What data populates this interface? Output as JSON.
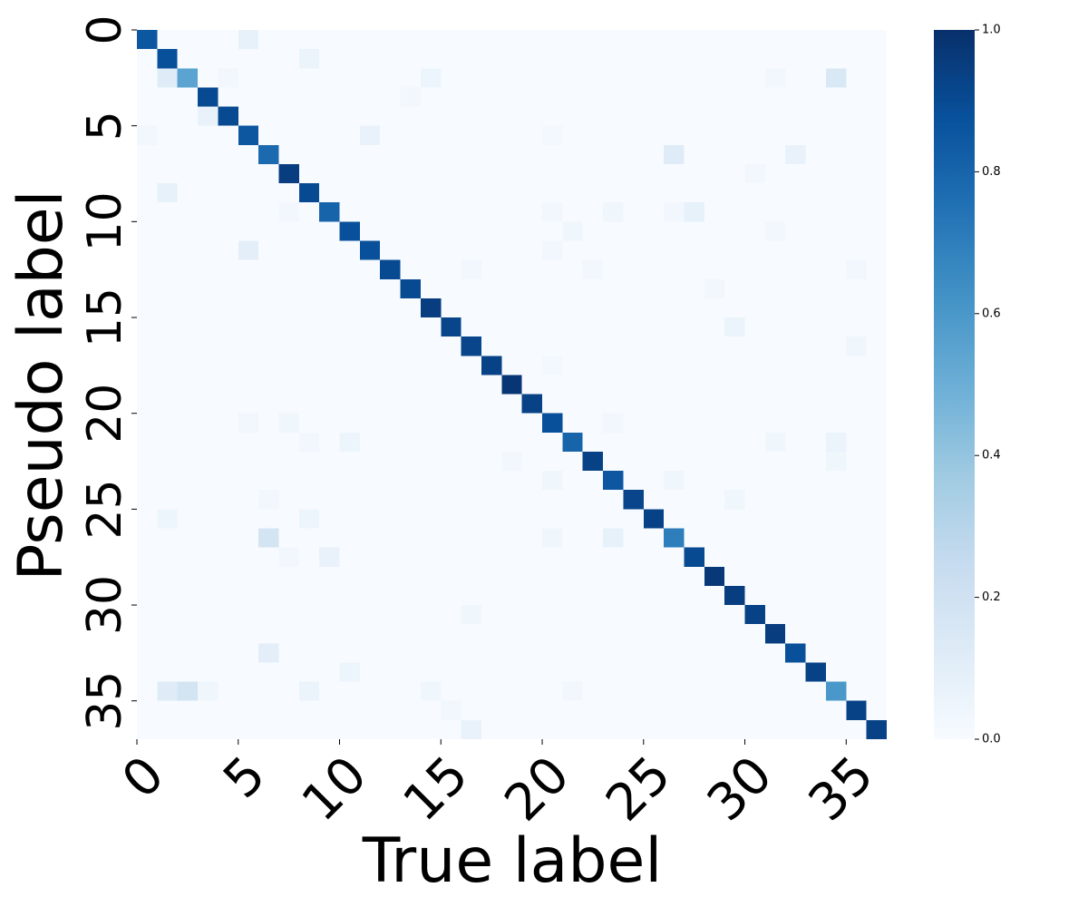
{
  "chart_data": {
    "type": "heatmap",
    "x_label": "True label",
    "y_label": "Pseudo label",
    "xlim": [
      0,
      37
    ],
    "ylim": [
      0,
      37
    ],
    "xticks": [
      0,
      5,
      10,
      15,
      20,
      25,
      30,
      35
    ],
    "yticks": [
      0,
      5,
      10,
      15,
      20,
      25,
      30,
      35
    ],
    "colorscale": [
      "#f7fbff",
      "#deebf7",
      "#c6dbef",
      "#9ecae1",
      "#6baed6",
      "#4292c6",
      "#2171b5",
      "#08519c",
      "#08306b"
    ],
    "colorbar": {
      "lim": [
        0,
        1
      ],
      "ticks": [
        {
          "value": 0,
          "label": "0.0"
        },
        {
          "value": 0.2,
          "label": "0.2"
        },
        {
          "value": 0.4,
          "label": "0.4"
        },
        {
          "value": 0.6,
          "label": "0.6"
        },
        {
          "value": 0.8,
          "label": "0.8"
        },
        {
          "value": 1,
          "label": "1.0"
        }
      ]
    },
    "values": [
      [
        0.85,
        0,
        0,
        0,
        0,
        0.08,
        0,
        0,
        0,
        0,
        0,
        0,
        0,
        0,
        0,
        0,
        0,
        0,
        0,
        0,
        0,
        0,
        0,
        0,
        0,
        0,
        0,
        0,
        0,
        0,
        0,
        0,
        0,
        0,
        0,
        0,
        0
      ],
      [
        0,
        0.88,
        0,
        0,
        0,
        0,
        0,
        0,
        0.06,
        0,
        0,
        0,
        0,
        0,
        0,
        0,
        0,
        0,
        0,
        0,
        0,
        0,
        0,
        0,
        0,
        0,
        0,
        0,
        0,
        0,
        0,
        0,
        0,
        0,
        0,
        0,
        0
      ],
      [
        0,
        0.12,
        0.55,
        0,
        0.03,
        0,
        0,
        0,
        0,
        0,
        0,
        0,
        0,
        0,
        0.05,
        0,
        0,
        0,
        0,
        0,
        0,
        0,
        0,
        0,
        0,
        0,
        0,
        0,
        0,
        0,
        0,
        0.03,
        0,
        0,
        0.15,
        0,
        0
      ],
      [
        0,
        0,
        0,
        0.9,
        0,
        0,
        0,
        0,
        0,
        0,
        0,
        0,
        0,
        0.03,
        0,
        0,
        0,
        0,
        0,
        0,
        0,
        0,
        0,
        0,
        0,
        0,
        0,
        0,
        0,
        0,
        0,
        0,
        0,
        0,
        0,
        0,
        0
      ],
      [
        0,
        0,
        0,
        0.07,
        0.9,
        0,
        0,
        0,
        0,
        0,
        0,
        0,
        0,
        0,
        0,
        0,
        0,
        0,
        0,
        0,
        0,
        0,
        0,
        0,
        0,
        0,
        0,
        0,
        0,
        0,
        0,
        0,
        0,
        0,
        0,
        0,
        0
      ],
      [
        0.03,
        0,
        0,
        0,
        0,
        0.85,
        0,
        0,
        0,
        0,
        0,
        0.07,
        0,
        0,
        0,
        0,
        0,
        0,
        0,
        0,
        0.02,
        0,
        0,
        0,
        0,
        0,
        0,
        0,
        0,
        0,
        0,
        0,
        0,
        0,
        0,
        0,
        0
      ],
      [
        0,
        0,
        0,
        0,
        0,
        0,
        0.78,
        0,
        0,
        0,
        0,
        0,
        0,
        0,
        0,
        0,
        0,
        0,
        0,
        0,
        0,
        0,
        0,
        0,
        0,
        0,
        0.12,
        0,
        0,
        0,
        0,
        0,
        0.07,
        0,
        0,
        0,
        0
      ],
      [
        0,
        0,
        0,
        0,
        0,
        0,
        0,
        0.95,
        0,
        0,
        0,
        0,
        0,
        0,
        0,
        0,
        0,
        0,
        0,
        0,
        0,
        0,
        0,
        0,
        0,
        0,
        0,
        0,
        0,
        0,
        0.03,
        0,
        0,
        0,
        0,
        0,
        0
      ],
      [
        0,
        0.08,
        0,
        0,
        0,
        0,
        0,
        0,
        0.9,
        0,
        0,
        0,
        0,
        0,
        0,
        0,
        0,
        0,
        0,
        0,
        0,
        0,
        0,
        0,
        0,
        0,
        0,
        0,
        0,
        0,
        0,
        0,
        0,
        0,
        0,
        0,
        0
      ],
      [
        0,
        0,
        0,
        0,
        0,
        0,
        0,
        0.03,
        0,
        0.8,
        0,
        0,
        0,
        0,
        0,
        0,
        0,
        0,
        0,
        0,
        0.03,
        0,
        0,
        0.04,
        0,
        0,
        0.03,
        0.08,
        0,
        0,
        0,
        0,
        0,
        0,
        0,
        0,
        0
      ],
      [
        0,
        0,
        0,
        0,
        0,
        0,
        0,
        0,
        0,
        0,
        0.88,
        0,
        0,
        0,
        0,
        0,
        0,
        0,
        0,
        0,
        0,
        0.04,
        0,
        0,
        0,
        0,
        0,
        0,
        0,
        0,
        0,
        0.03,
        0,
        0,
        0,
        0,
        0
      ],
      [
        0,
        0,
        0,
        0,
        0,
        0.1,
        0,
        0,
        0,
        0,
        0,
        0.88,
        0,
        0,
        0,
        0,
        0,
        0,
        0,
        0,
        0.03,
        0,
        0,
        0,
        0,
        0,
        0,
        0,
        0,
        0,
        0,
        0,
        0,
        0,
        0,
        0,
        0
      ],
      [
        0,
        0,
        0,
        0,
        0,
        0,
        0,
        0,
        0,
        0,
        0,
        0,
        0.9,
        0,
        0,
        0,
        0.03,
        0,
        0,
        0,
        0,
        0,
        0.03,
        0,
        0,
        0,
        0,
        0,
        0,
        0,
        0,
        0,
        0,
        0,
        0,
        0.03,
        0
      ],
      [
        0,
        0,
        0,
        0,
        0,
        0,
        0,
        0,
        0,
        0,
        0,
        0,
        0,
        0.9,
        0,
        0,
        0,
        0,
        0,
        0,
        0,
        0,
        0,
        0,
        0,
        0,
        0,
        0,
        0.03,
        0,
        0,
        0,
        0,
        0,
        0,
        0,
        0
      ],
      [
        0,
        0,
        0,
        0,
        0,
        0,
        0,
        0,
        0,
        0,
        0,
        0,
        0,
        0,
        0.95,
        0,
        0,
        0,
        0,
        0,
        0,
        0,
        0,
        0,
        0,
        0,
        0,
        0,
        0,
        0,
        0,
        0,
        0,
        0,
        0,
        0,
        0
      ],
      [
        0,
        0,
        0,
        0,
        0,
        0,
        0,
        0,
        0,
        0,
        0,
        0,
        0,
        0,
        0,
        0.92,
        0,
        0,
        0,
        0,
        0,
        0,
        0,
        0,
        0,
        0,
        0,
        0,
        0,
        0.06,
        0,
        0,
        0,
        0,
        0,
        0,
        0
      ],
      [
        0,
        0,
        0,
        0,
        0,
        0,
        0,
        0,
        0,
        0,
        0,
        0,
        0,
        0,
        0,
        0,
        0.92,
        0,
        0,
        0,
        0,
        0,
        0,
        0,
        0,
        0,
        0,
        0,
        0,
        0,
        0,
        0,
        0,
        0,
        0,
        0.04,
        0
      ],
      [
        0,
        0,
        0,
        0,
        0,
        0,
        0,
        0,
        0,
        0,
        0,
        0,
        0,
        0,
        0,
        0,
        0,
        0.93,
        0,
        0,
        0.02,
        0,
        0,
        0,
        0,
        0,
        0,
        0,
        0,
        0,
        0,
        0,
        0,
        0,
        0,
        0,
        0
      ],
      [
        0,
        0,
        0,
        0,
        0,
        0,
        0,
        0,
        0,
        0,
        0,
        0,
        0,
        0,
        0,
        0,
        0,
        0,
        0.98,
        0,
        0,
        0,
        0,
        0,
        0,
        0,
        0,
        0,
        0,
        0,
        0,
        0,
        0,
        0,
        0,
        0,
        0
      ],
      [
        0,
        0,
        0,
        0,
        0,
        0,
        0,
        0,
        0,
        0,
        0,
        0,
        0,
        0,
        0,
        0,
        0,
        0,
        0,
        0.93,
        0,
        0,
        0,
        0,
        0,
        0,
        0,
        0,
        0,
        0,
        0,
        0,
        0,
        0,
        0,
        0,
        0
      ],
      [
        0,
        0,
        0,
        0,
        0,
        0.03,
        0,
        0.04,
        0,
        0,
        0,
        0,
        0,
        0,
        0,
        0,
        0,
        0,
        0,
        0,
        0.88,
        0,
        0,
        0.03,
        0,
        0,
        0,
        0,
        0,
        0,
        0,
        0,
        0,
        0,
        0,
        0,
        0
      ],
      [
        0,
        0,
        0,
        0,
        0,
        0,
        0,
        0,
        0.03,
        0,
        0.05,
        0,
        0,
        0,
        0,
        0,
        0,
        0,
        0,
        0,
        0,
        0.8,
        0,
        0,
        0,
        0,
        0,
        0,
        0,
        0,
        0,
        0.04,
        0,
        0,
        0.06,
        0,
        0
      ],
      [
        0,
        0,
        0,
        0,
        0,
        0,
        0,
        0,
        0,
        0,
        0,
        0,
        0,
        0,
        0,
        0,
        0,
        0,
        0.03,
        0,
        0,
        0,
        0.93,
        0,
        0,
        0,
        0,
        0,
        0,
        0,
        0,
        0,
        0,
        0,
        0.04,
        0,
        0
      ],
      [
        0,
        0,
        0,
        0,
        0,
        0,
        0,
        0,
        0,
        0,
        0,
        0,
        0,
        0,
        0,
        0,
        0,
        0,
        0,
        0,
        0.04,
        0,
        0,
        0.85,
        0,
        0,
        0.04,
        0,
        0,
        0,
        0,
        0,
        0,
        0,
        0,
        0,
        0
      ],
      [
        0,
        0,
        0,
        0,
        0,
        0,
        0.03,
        0,
        0,
        0,
        0,
        0,
        0,
        0,
        0,
        0,
        0,
        0,
        0,
        0,
        0,
        0,
        0,
        0,
        0.92,
        0,
        0,
        0,
        0,
        0.04,
        0,
        0,
        0,
        0,
        0,
        0,
        0
      ],
      [
        0,
        0.05,
        0,
        0,
        0,
        0,
        0,
        0,
        0.05,
        0,
        0,
        0,
        0,
        0,
        0,
        0,
        0,
        0,
        0,
        0,
        0,
        0,
        0,
        0,
        0,
        0.93,
        0,
        0,
        0,
        0,
        0,
        0,
        0,
        0,
        0,
        0,
        0
      ],
      [
        0,
        0,
        0,
        0,
        0,
        0,
        0.18,
        0,
        0,
        0,
        0,
        0,
        0,
        0,
        0,
        0,
        0,
        0,
        0,
        0,
        0.04,
        0,
        0,
        0.08,
        0,
        0,
        0.7,
        0,
        0,
        0,
        0,
        0,
        0,
        0,
        0,
        0,
        0
      ],
      [
        0,
        0,
        0,
        0,
        0,
        0,
        0,
        0.03,
        0,
        0.07,
        0,
        0,
        0,
        0,
        0,
        0,
        0,
        0,
        0,
        0,
        0,
        0,
        0,
        0,
        0,
        0,
        0,
        0.9,
        0,
        0,
        0,
        0,
        0,
        0,
        0,
        0,
        0
      ],
      [
        0,
        0,
        0,
        0,
        0,
        0,
        0,
        0,
        0,
        0,
        0,
        0,
        0,
        0,
        0,
        0,
        0,
        0,
        0,
        0,
        0,
        0,
        0,
        0,
        0,
        0,
        0,
        0,
        0.97,
        0,
        0,
        0,
        0,
        0,
        0,
        0,
        0
      ],
      [
        0,
        0,
        0,
        0,
        0,
        0,
        0,
        0,
        0,
        0,
        0,
        0,
        0,
        0,
        0,
        0,
        0,
        0,
        0,
        0,
        0,
        0,
        0,
        0,
        0,
        0,
        0,
        0,
        0,
        0.95,
        0,
        0,
        0,
        0,
        0,
        0,
        0
      ],
      [
        0,
        0,
        0,
        0,
        0,
        0,
        0,
        0,
        0,
        0,
        0,
        0,
        0,
        0,
        0,
        0,
        0.04,
        0,
        0,
        0,
        0,
        0,
        0,
        0,
        0,
        0,
        0,
        0,
        0,
        0,
        0.93,
        0,
        0,
        0,
        0,
        0,
        0
      ],
      [
        0,
        0,
        0,
        0,
        0,
        0,
        0,
        0,
        0,
        0,
        0,
        0,
        0,
        0,
        0,
        0,
        0,
        0,
        0,
        0,
        0,
        0,
        0,
        0,
        0,
        0,
        0,
        0,
        0,
        0,
        0,
        0.95,
        0,
        0,
        0,
        0,
        0
      ],
      [
        0,
        0,
        0,
        0,
        0,
        0,
        0.1,
        0,
        0,
        0,
        0,
        0,
        0,
        0,
        0,
        0,
        0,
        0,
        0,
        0,
        0,
        0,
        0,
        0,
        0,
        0,
        0,
        0,
        0,
        0,
        0,
        0,
        0.88,
        0,
        0,
        0,
        0
      ],
      [
        0,
        0,
        0,
        0,
        0,
        0,
        0,
        0,
        0,
        0,
        0.05,
        0,
        0,
        0,
        0,
        0,
        0,
        0,
        0,
        0,
        0,
        0,
        0,
        0,
        0,
        0,
        0,
        0,
        0,
        0,
        0,
        0,
        0,
        0.93,
        0,
        0,
        0
      ],
      [
        0,
        0.12,
        0.18,
        0.04,
        0,
        0,
        0,
        0,
        0.06,
        0,
        0,
        0,
        0,
        0,
        0.04,
        0,
        0,
        0,
        0,
        0,
        0,
        0.03,
        0,
        0,
        0,
        0,
        0,
        0,
        0,
        0,
        0,
        0,
        0,
        0,
        0.6,
        0,
        0
      ],
      [
        0,
        0,
        0,
        0,
        0,
        0,
        0,
        0,
        0,
        0,
        0,
        0,
        0,
        0,
        0,
        0.03,
        0,
        0,
        0,
        0,
        0,
        0,
        0,
        0,
        0,
        0,
        0,
        0,
        0,
        0,
        0,
        0,
        0,
        0,
        0,
        0.93,
        0
      ],
      [
        0,
        0,
        0,
        0,
        0,
        0,
        0,
        0,
        0,
        0,
        0,
        0,
        0,
        0,
        0,
        0,
        0.07,
        0,
        0,
        0,
        0,
        0,
        0,
        0,
        0,
        0,
        0,
        0,
        0,
        0,
        0,
        0,
        0,
        0,
        0,
        0,
        0.93
      ]
    ]
  }
}
